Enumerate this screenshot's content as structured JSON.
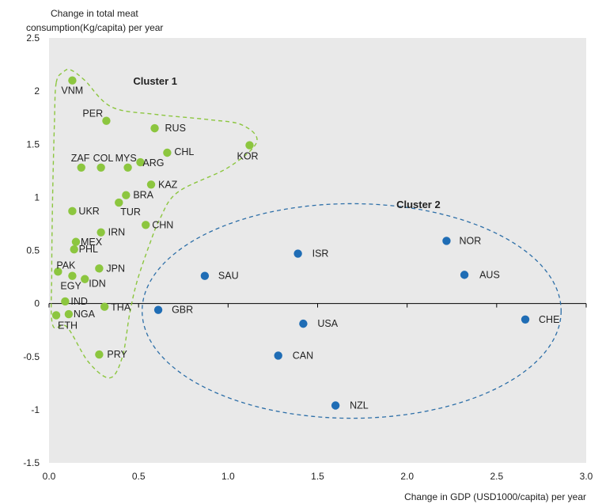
{
  "chart_data": {
    "type": "scatter",
    "title": "",
    "ylabel_line1": "Change in total meat",
    "ylabel_line2": "consumption(Kg/capita) per year",
    "xlabel": "Change in GDP (USD1000/capita) per year",
    "xlim": [
      0,
      3.0
    ],
    "ylim": [
      -1.5,
      2.5
    ],
    "x_ticks": [
      "0.0",
      "0.5",
      "1.0",
      "1.5",
      "2.0",
      "2.5",
      "3.0"
    ],
    "y_ticks": [
      "2.5",
      "2",
      "1.5",
      "1",
      "0.5",
      "0",
      "-0.5",
      "-1",
      "-1.5"
    ],
    "grid": false,
    "series": [
      {
        "name": "Cluster 1",
        "color": "#8cc63f",
        "points": [
          {
            "label": "VNM",
            "x": 0.13,
            "y": 2.1
          },
          {
            "label": "PER",
            "x": 0.32,
            "y": 1.72
          },
          {
            "label": "RUS",
            "x": 0.59,
            "y": 1.65
          },
          {
            "label": "CHL",
            "x": 0.66,
            "y": 1.42
          },
          {
            "label": "KOR",
            "x": 1.12,
            "y": 1.49
          },
          {
            "label": "ZAF",
            "x": 0.18,
            "y": 1.28
          },
          {
            "label": "COL",
            "x": 0.29,
            "y": 1.28
          },
          {
            "label": "MYS",
            "x": 0.44,
            "y": 1.28
          },
          {
            "label": "ARG",
            "x": 0.51,
            "y": 1.33
          },
          {
            "label": "KAZ",
            "x": 0.57,
            "y": 1.12
          },
          {
            "label": "BRA",
            "x": 0.43,
            "y": 1.02
          },
          {
            "label": "TUR",
            "x": 0.39,
            "y": 0.95
          },
          {
            "label": "UKR",
            "x": 0.13,
            "y": 0.87
          },
          {
            "label": "CHN",
            "x": 0.54,
            "y": 0.74
          },
          {
            "label": "IRN",
            "x": 0.29,
            "y": 0.67
          },
          {
            "label": "MEX",
            "x": 0.15,
            "y": 0.58
          },
          {
            "label": "PHL",
            "x": 0.14,
            "y": 0.51
          },
          {
            "label": "PAK",
            "x": 0.05,
            "y": 0.3
          },
          {
            "label": "JPN",
            "x": 0.28,
            "y": 0.33
          },
          {
            "label": "EGY",
            "x": 0.13,
            "y": 0.26
          },
          {
            "label": "IDN",
            "x": 0.2,
            "y": 0.23
          },
          {
            "label": "IND",
            "x": 0.09,
            "y": 0.02
          },
          {
            "label": "THA",
            "x": 0.31,
            "y": -0.03
          },
          {
            "label": "ETH",
            "x": 0.04,
            "y": -0.11
          },
          {
            "label": "NGA",
            "x": 0.11,
            "y": -0.1
          },
          {
            "label": "PRY",
            "x": 0.28,
            "y": -0.48
          }
        ]
      },
      {
        "name": "Cluster 2",
        "color": "#1f6db5",
        "points": [
          {
            "label": "GBR",
            "x": 0.61,
            "y": -0.06
          },
          {
            "label": "SAU",
            "x": 0.87,
            "y": 0.26
          },
          {
            "label": "ISR",
            "x": 1.39,
            "y": 0.47
          },
          {
            "label": "USA",
            "x": 1.42,
            "y": -0.19
          },
          {
            "label": "CAN",
            "x": 1.28,
            "y": -0.49
          },
          {
            "label": "NZL",
            "x": 1.6,
            "y": -0.96
          },
          {
            "label": "NOR",
            "x": 2.22,
            "y": 0.59
          },
          {
            "label": "AUS",
            "x": 2.32,
            "y": 0.27
          },
          {
            "label": "CHE",
            "x": 2.66,
            "y": -0.15
          }
        ]
      }
    ],
    "annotations": [
      "Cluster 1",
      "Cluster 2"
    ]
  }
}
